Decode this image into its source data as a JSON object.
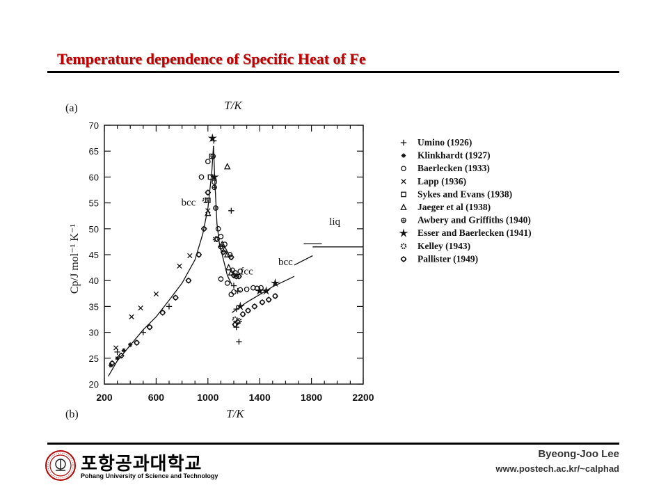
{
  "slide": {
    "title": "Temperature dependence of  Specific Heat of  Fe"
  },
  "footer": {
    "author": "Byeong-Joo Lee",
    "website": "www.postech.ac.kr/~calphad",
    "logo_text_kr": "포항공과대학교",
    "logo_text_en": "Pohang University of Science and Technology"
  },
  "chart_data": {
    "type": "scatter",
    "panel_labels": [
      "(a)",
      "(b)"
    ],
    "xlabel": "T/K",
    "top_xlabel": "T/K",
    "ylabel": "Cp/J mol⁻¹ K⁻¹",
    "xlim": [
      200,
      2200
    ],
    "ylim": [
      20,
      70
    ],
    "xticks": [
      200,
      600,
      1000,
      1400,
      1800,
      2200
    ],
    "yticks": [
      20,
      25,
      30,
      35,
      40,
      45,
      50,
      55,
      60,
      65,
      70
    ],
    "phase_labels": [
      {
        "text": "bcc",
        "x": 850,
        "y": 54.5
      },
      {
        "text": "fcc",
        "x": 1300,
        "y": 41.2
      },
      {
        "text": "bcc",
        "x": 1600,
        "y": 43.0
      },
      {
        "text": "liq",
        "x": 1980,
        "y": 50.8
      }
    ],
    "curves": [
      {
        "phase": "bcc-low",
        "points": [
          [
            230,
            21.5
          ],
          [
            300,
            24.5
          ],
          [
            400,
            27.5
          ],
          [
            500,
            30.5
          ],
          [
            600,
            33.0
          ],
          [
            700,
            36.2
          ],
          [
            800,
            39.5
          ],
          [
            900,
            44.0
          ],
          [
            960,
            49.0
          ],
          [
            1000,
            54.0
          ],
          [
            1030,
            61.0
          ],
          [
            1043,
            66.0
          ]
        ]
      },
      {
        "phase": "bcc-high",
        "points": [
          [
            1043,
            66.0
          ],
          [
            1055,
            58.5
          ],
          [
            1070,
            51.0
          ],
          [
            1090,
            47.0
          ],
          [
            1110,
            45.0
          ],
          [
            1130,
            43.0
          ],
          [
            1150,
            41.0
          ],
          [
            1185,
            39.2
          ]
        ]
      },
      {
        "phase": "fcc",
        "points": [
          [
            1185,
            33.8
          ],
          [
            1300,
            35.8
          ],
          [
            1400,
            37.3
          ],
          [
            1500,
            38.8
          ],
          [
            1667,
            40.8
          ]
        ]
      },
      {
        "phase": "bcc-delta",
        "points": [
          [
            1667,
            43.0
          ],
          [
            1809,
            44.8
          ]
        ]
      },
      {
        "phase": "liq",
        "points": [
          [
            1809,
            46.5
          ],
          [
            2200,
            46.5
          ]
        ]
      }
    ],
    "series": [
      {
        "name": "Umino (1926)",
        "marker": "plus",
        "points": [
          [
            300,
            26.2
          ],
          [
            500,
            30.0
          ],
          [
            700,
            35.0
          ],
          [
            1045,
            67.0
          ],
          [
            1180,
            53.5
          ],
          [
            1200,
            39.0
          ],
          [
            1220,
            34.5
          ],
          [
            1220,
            31.0
          ],
          [
            1230,
            38.0
          ],
          [
            1240,
            28.2
          ]
        ]
      },
      {
        "name": "Klinkhardt (1927)",
        "marker": "asterisk",
        "points": [
          [
            250,
            23.6
          ],
          [
            300,
            25.0
          ],
          [
            350,
            26.5
          ],
          [
            400,
            27.6
          ]
        ]
      },
      {
        "name": "Baerlecken (1933)",
        "marker": "circle",
        "points": [
          [
            950,
            60.0
          ],
          [
            1000,
            63.0
          ],
          [
            1050,
            59.0
          ],
          [
            1080,
            50.0
          ],
          [
            1100,
            48.5
          ],
          [
            1130,
            47.0
          ],
          [
            1170,
            45.0
          ],
          [
            1190,
            42.0
          ],
          [
            1210,
            41.5
          ],
          [
            1250,
            41.8
          ],
          [
            1200,
            37.8
          ],
          [
            1250,
            38.2
          ],
          [
            1300,
            38.3
          ],
          [
            1350,
            38.6
          ],
          [
            1380,
            38.5
          ],
          [
            1410,
            38.6
          ],
          [
            1100,
            40.3
          ],
          [
            1150,
            39.5
          ],
          [
            1180,
            37.3
          ]
        ]
      },
      {
        "name": "Lapp (1936)",
        "marker": "cross",
        "points": [
          [
            290,
            27.0
          ],
          [
            410,
            33.0
          ],
          [
            480,
            34.7
          ],
          [
            600,
            37.4
          ],
          [
            780,
            42.8
          ],
          [
            860,
            44.8
          ],
          [
            1000,
            53.5
          ]
        ]
      },
      {
        "name": "Sykes and Evans (1938)",
        "marker": "square",
        "points": [
          [
            1000,
            55.5
          ],
          [
            1020,
            60.0
          ],
          [
            1030,
            64.0
          ]
        ]
      },
      {
        "name": "Jaeger et al (1938)",
        "marker": "triangle",
        "points": [
          [
            1000,
            53.0
          ],
          [
            1150,
            62.0
          ],
          [
            1110,
            47.0
          ],
          [
            1130,
            46.0
          ],
          [
            1150,
            45.0
          ],
          [
            1160,
            42.5
          ],
          [
            1180,
            41.5
          ]
        ]
      },
      {
        "name": "Awbery and Griffiths (1940)",
        "marker": "circle-plus",
        "points": [
          [
            1040,
            64.0
          ],
          [
            1050,
            58.0
          ],
          [
            1060,
            54.0
          ]
        ]
      },
      {
        "name": "Esser and Baerlecken (1941)",
        "marker": "star",
        "points": [
          [
            1035,
            67.5
          ],
          [
            1050,
            60.0
          ],
          [
            1400,
            38.0
          ],
          [
            1450,
            38.0
          ],
          [
            1520,
            39.5
          ],
          [
            1250,
            35.0
          ]
        ]
      },
      {
        "name": "Kelley (1943)",
        "marker": "gear",
        "points": [
          [
            980,
            55.5
          ],
          [
            1060,
            48.0
          ],
          [
            1210,
            32.5
          ],
          [
            1240,
            32.2
          ]
        ]
      },
      {
        "name": "Pallister (1949)",
        "marker": "diamond",
        "points": [
          [
            260,
            24.0
          ],
          [
            330,
            25.5
          ],
          [
            450,
            28.0
          ],
          [
            550,
            31.0
          ],
          [
            650,
            33.8
          ],
          [
            750,
            36.7
          ],
          [
            850,
            40.0
          ],
          [
            930,
            45.0
          ],
          [
            970,
            50.0
          ],
          [
            1000,
            57.0
          ],
          [
            1070,
            48.0
          ],
          [
            1100,
            46.5
          ],
          [
            1120,
            45.5
          ],
          [
            1180,
            44.5
          ],
          [
            1200,
            41.0
          ],
          [
            1220,
            40.8
          ],
          [
            1240,
            40.8
          ],
          [
            1210,
            31.5
          ],
          [
            1230,
            32.0
          ],
          [
            1270,
            33.5
          ],
          [
            1310,
            34.2
          ],
          [
            1360,
            35.0
          ],
          [
            1420,
            35.8
          ],
          [
            1470,
            36.3
          ],
          [
            1520,
            37.0
          ]
        ]
      }
    ]
  }
}
